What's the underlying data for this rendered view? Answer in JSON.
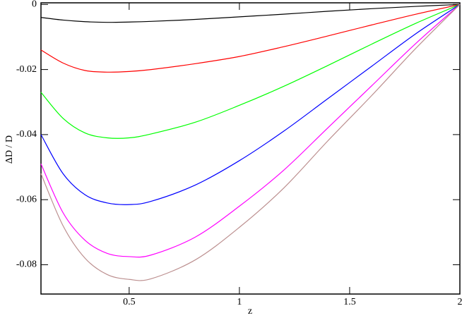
{
  "chart_data": {
    "type": "line",
    "x_label": "z",
    "y_label": "ΔD / D",
    "x": [
      0.1,
      0.2,
      0.3,
      0.4,
      0.5,
      0.6,
      0.8,
      1.0,
      1.2,
      1.4,
      1.6,
      1.8,
      2.0
    ],
    "series": [
      {
        "color": "#000000",
        "values": [
          -0.004,
          -0.0048,
          -0.0053,
          -0.0055,
          -0.0054,
          -0.0052,
          -0.0046,
          -0.0038,
          -0.003,
          -0.0021,
          -0.0013,
          -0.0006,
          0
        ]
      },
      {
        "color": "#ff0000",
        "values": [
          -0.014,
          -0.018,
          -0.0203,
          -0.0208,
          -0.0206,
          -0.02,
          -0.0182,
          -0.016,
          -0.013,
          -0.0097,
          -0.0063,
          -0.003,
          0
        ]
      },
      {
        "color": "#00ff00",
        "values": [
          -0.027,
          -0.035,
          -0.0395,
          -0.041,
          -0.041,
          -0.0398,
          -0.0362,
          -0.031,
          -0.0252,
          -0.0188,
          -0.0122,
          -0.0058,
          0
        ]
      },
      {
        "color": "#0000ff",
        "values": [
          -0.04,
          -0.052,
          -0.0585,
          -0.061,
          -0.0615,
          -0.0605,
          -0.0555,
          -0.048,
          -0.039,
          -0.029,
          -0.019,
          -0.009,
          0
        ]
      },
      {
        "color": "#ff00ff",
        "values": [
          -0.049,
          -0.064,
          -0.0725,
          -0.0765,
          -0.0775,
          -0.077,
          -0.0715,
          -0.062,
          -0.051,
          -0.038,
          -0.025,
          -0.012,
          0
        ]
      },
      {
        "color": "#bc8f8f",
        "values": [
          -0.052,
          -0.068,
          -0.078,
          -0.083,
          -0.0845,
          -0.0843,
          -0.0785,
          -0.0685,
          -0.0565,
          -0.042,
          -0.028,
          -0.0135,
          0
        ]
      }
    ],
    "xlim": [
      0.1,
      2.0
    ],
    "ylim": [
      -0.089,
      0.0005
    ],
    "xticks": [
      0.5,
      1,
      1.5,
      2
    ],
    "yticks": [
      0,
      -0.02,
      -0.04,
      -0.06,
      -0.08
    ]
  }
}
